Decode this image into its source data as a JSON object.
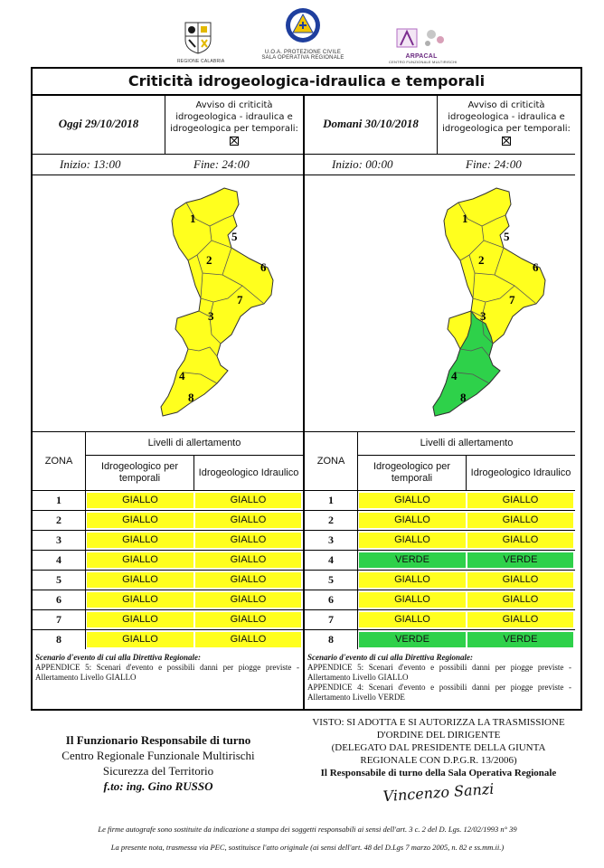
{
  "logos": {
    "left_caption": "REGIONE CALABRIA",
    "center_line1": "U.O.A. PROTEZIONE CIVILE",
    "center_line2": "SALA OPERATIVA REGIONALE",
    "right_name": "ARPACAL",
    "right_caption": "CENTRO FUNZIONALE MULTIRISCHI"
  },
  "title": "Criticità idrogeologica-idraulica e temporali",
  "days": [
    {
      "date": "Oggi 29/10/2018",
      "avviso": "Avviso di criticità idrogeologica - idraulica e idrogeologica per temporali:",
      "inizio": "Inizio: 13:00",
      "fine": "Fine: 24:00",
      "zona_header": "ZONA",
      "livelli_header": "Livelli di allertamento",
      "col1": "Idrogeologico per temporali",
      "col2": "Idrogeologico Idraulico",
      "rows": [
        {
          "z": "1",
          "a": "GIALLO",
          "b": "GIALLO"
        },
        {
          "z": "2",
          "a": "GIALLO",
          "b": "GIALLO"
        },
        {
          "z": "3",
          "a": "GIALLO",
          "b": "GIALLO"
        },
        {
          "z": "4",
          "a": "GIALLO",
          "b": "GIALLO"
        },
        {
          "z": "5",
          "a": "GIALLO",
          "b": "GIALLO"
        },
        {
          "z": "6",
          "a": "GIALLO",
          "b": "GIALLO"
        },
        {
          "z": "7",
          "a": "GIALLO",
          "b": "GIALLO"
        },
        {
          "z": "8",
          "a": "GIALLO",
          "b": "GIALLO"
        }
      ],
      "scenario_head": "Scenario d'evento di cui alla Direttiva Regionale:",
      "scenario_lines": [
        "APPENDICE 5: Scenari d'evento e possibili danni per piogge previste - Allertamento Livello GIALLO"
      ],
      "map_zones": [
        "1",
        "2",
        "3",
        "4",
        "5",
        "6",
        "7",
        "8"
      ]
    },
    {
      "date": "Domani 30/10/2018",
      "avviso": "Avviso di criticità idrogeologica - idraulica e idrogeologica per temporali:",
      "inizio": "Inizio: 00:00",
      "fine": "Fine: 24:00",
      "zona_header": "ZONA",
      "livelli_header": "Livelli di allertamento",
      "col1": "Idrogeologico per temporali",
      "col2": "Idrogeologico Idraulico",
      "rows": [
        {
          "z": "1",
          "a": "GIALLO",
          "b": "GIALLO"
        },
        {
          "z": "2",
          "a": "GIALLO",
          "b": "GIALLO"
        },
        {
          "z": "3",
          "a": "GIALLO",
          "b": "GIALLO"
        },
        {
          "z": "4",
          "a": "VERDE",
          "b": "VERDE"
        },
        {
          "z": "5",
          "a": "GIALLO",
          "b": "GIALLO"
        },
        {
          "z": "6",
          "a": "GIALLO",
          "b": "GIALLO"
        },
        {
          "z": "7",
          "a": "GIALLO",
          "b": "GIALLO"
        },
        {
          "z": "8",
          "a": "VERDE",
          "b": "VERDE"
        }
      ],
      "scenario_head": "Scenario d'evento di cui alla Direttiva Regionale:",
      "scenario_lines": [
        "APPENDICE 5: Scenari d'evento e possibili danni per piogge previste - Allertamento Livello GIALLO",
        "APPENDICE 4: Scenari d'evento e possibili danni per piogge previste - Allertamento Livello VERDE"
      ],
      "map_zones": [
        "1",
        "2",
        "3",
        "4",
        "5",
        "6",
        "7",
        "8"
      ]
    }
  ],
  "colors": {
    "giallo": "#ffff1e",
    "verde": "#2ed14a"
  },
  "signature_left": {
    "line1": "Il Funzionario Responsabile di turno",
    "line2": "Centro Regionale Funzionale Multirischi",
    "line3": "Sicurezza del Territorio",
    "line4": "f.to: ing. Gino RUSSO"
  },
  "signature_right": {
    "line1": "VISTO: SI ADOTTA E SI AUTORIZZA LA TRASMISSIONE",
    "line2": "D'ORDINE DEL DIRIGENTE",
    "line3": "(DELEGATO DAL PRESIDENTE DELLA GIUNTA",
    "line4": "REGIONALE CON D.P.G.R. 13/2006)",
    "line5": "Il Responsabile di turno della Sala Operativa Regionale",
    "signature": "Vincenzo Sanzi"
  },
  "footer": {
    "line1": "Le firme autografe sono sostituite da indicazione a stampa dei soggetti responsabili ai sensi dell'art. 3 c. 2 del D. Lgs. 12/02/1993 n° 39",
    "line2": "La presente nota, trasmessa via PEC, sostituisce l'atto originale (ai sensi dell'art. 48 del D.Lgs 7 marzo 2005, n. 82 e ss.mm.ii.)"
  }
}
